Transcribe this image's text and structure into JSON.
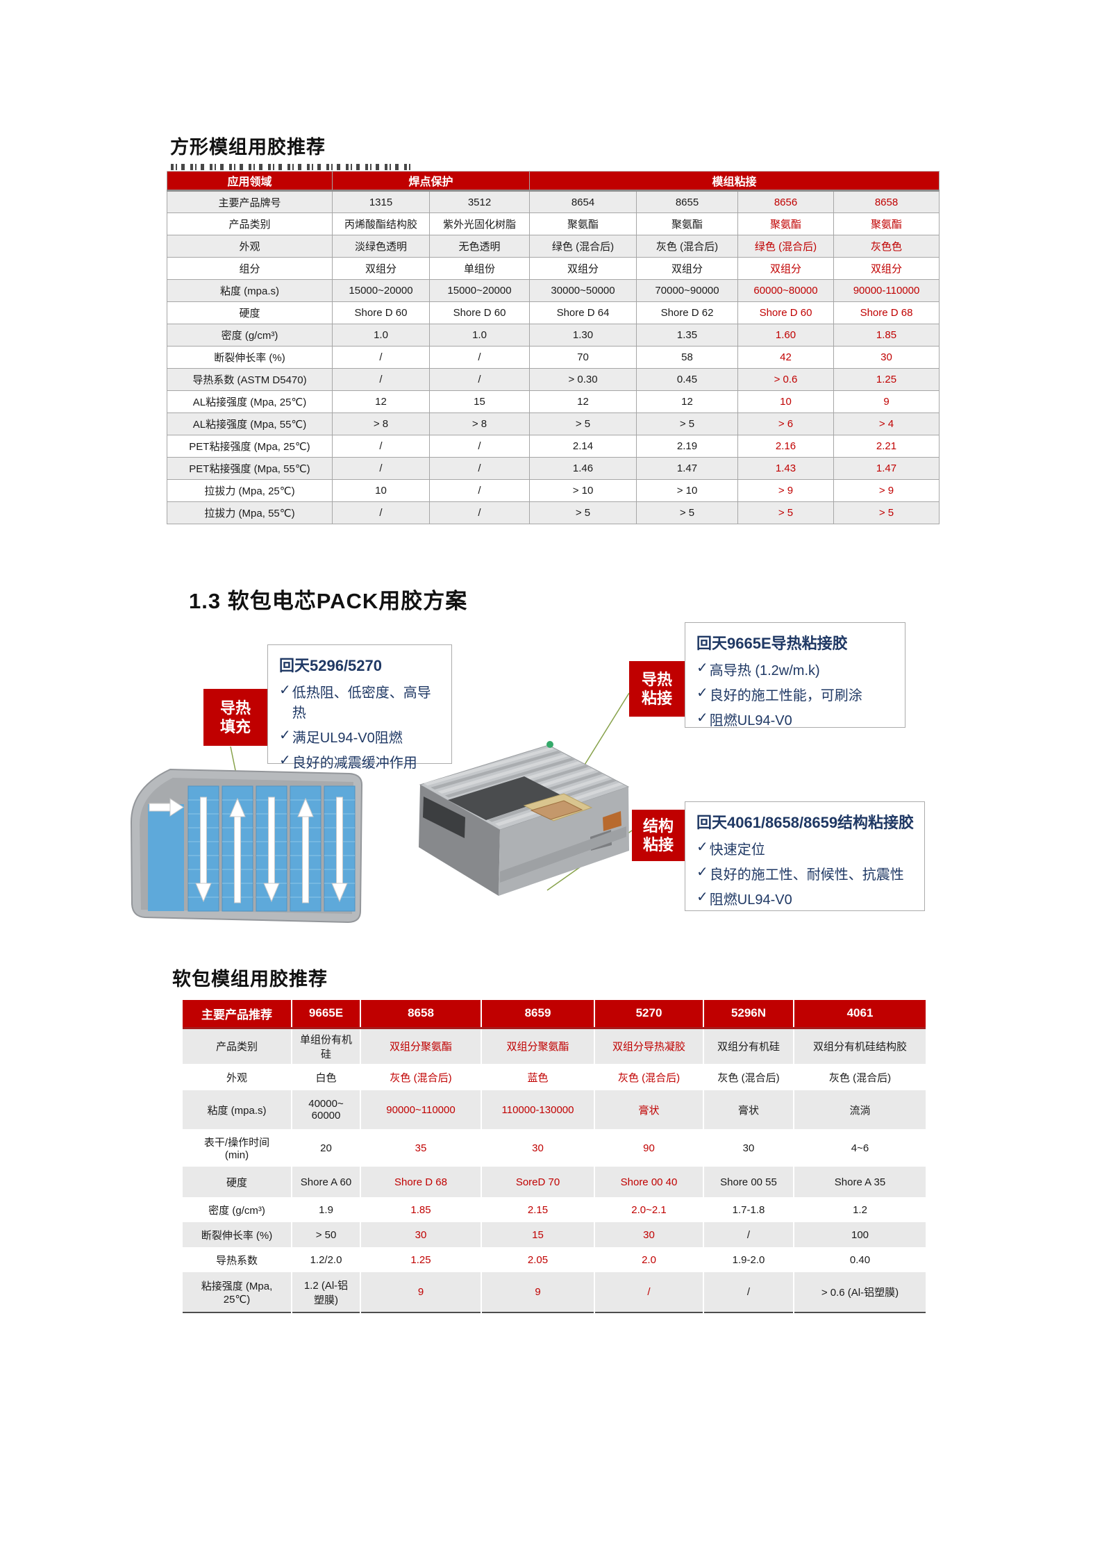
{
  "table1": {
    "title": "方形模组用胶推荐",
    "header_row": {
      "app_field": "应用领域",
      "weld_protection": "焊点保护",
      "module_bonding": "模组粘接"
    },
    "red_value_columns": [
      4,
      5
    ],
    "rows": [
      {
        "label": "主要产品牌号",
        "values": [
          "1315",
          "3512",
          "8654",
          "8655",
          "8656",
          "8658"
        ]
      },
      {
        "label": "产品类别",
        "values": [
          "丙烯酸酯结构胶",
          "紫外光固化树脂",
          "聚氨酯",
          "聚氨酯",
          "聚氨酯",
          "聚氨酯"
        ]
      },
      {
        "label": "外观",
        "values": [
          "淡绿色透明",
          "无色透明",
          "绿色 (混合后)",
          "灰色 (混合后)",
          "绿色 (混合后)",
          "灰色色"
        ]
      },
      {
        "label": "组分",
        "values": [
          "双组分",
          "单组份",
          "双组分",
          "双组分",
          "双组分",
          "双组分"
        ]
      },
      {
        "label": "粘度 (mpa.s)",
        "values": [
          "15000~20000",
          "15000~20000",
          "30000~50000",
          "70000~90000",
          "60000~80000",
          "90000-110000"
        ]
      },
      {
        "label": "硬度",
        "values": [
          "Shore D 60",
          "Shore D 60",
          "Shore D 64",
          "Shore D 62",
          "Shore D 60",
          "Shore D 68"
        ]
      },
      {
        "label": "密度 (g/cm³)",
        "values": [
          "1.0",
          "1.0",
          "1.30",
          "1.35",
          "1.60",
          "1.85"
        ]
      },
      {
        "label": "断裂伸长率 (%)",
        "values": [
          "/",
          "/",
          "70",
          "58",
          "42",
          "30"
        ]
      },
      {
        "label": "导热系数 (ASTM D5470)",
        "values": [
          "/",
          "/",
          "> 0.30",
          "0.45",
          "> 0.6",
          "1.25"
        ]
      },
      {
        "label": "AL粘接强度 (Mpa, 25℃)",
        "values": [
          "12",
          "15",
          "12",
          "12",
          "10",
          "9"
        ]
      },
      {
        "label": "AL粘接强度 (Mpa, 55℃)",
        "values": [
          "> 8",
          "> 8",
          "> 5",
          "> 5",
          "> 6",
          "> 4"
        ]
      },
      {
        "label": "PET粘接强度 (Mpa, 25℃)",
        "values": [
          "/",
          "/",
          "2.14",
          "2.19",
          "2.16",
          "2.21"
        ]
      },
      {
        "label": "PET粘接强度 (Mpa, 55℃)",
        "values": [
          "/",
          "/",
          "1.46",
          "1.47",
          "1.43",
          "1.47"
        ]
      },
      {
        "label": "拉拔力 (Mpa, 25℃)",
        "values": [
          "10",
          "/",
          "> 10",
          "> 10",
          "> 9",
          "> 9"
        ]
      },
      {
        "label": "拉拔力 (Mpa, 55℃)",
        "values": [
          "/",
          "/",
          "> 5",
          "> 5",
          "> 5",
          "> 5"
        ]
      }
    ]
  },
  "section": {
    "heading": "1.3 软包电芯PACK用胶方案"
  },
  "diagram": {
    "check_glyph": "✓",
    "tags": [
      {
        "label": "导热\n填充"
      },
      {
        "label": "导热\n粘接"
      },
      {
        "label": "结构\n粘接"
      }
    ],
    "callouts": [
      {
        "title": "回天5296/5270",
        "items": [
          "低热阻、低密度、高导热",
          "满足UL94-V0阻燃",
          "良好的减震缓冲作用"
        ]
      },
      {
        "title": "回天9665E导热粘接胶",
        "items": [
          "高导热 (1.2w/m.k)",
          "良好的施工性能，可刷涂",
          "阻燃UL94-V0"
        ]
      },
      {
        "title": "回天4061/8658/8659结构粘接胶",
        "items": [
          "快速定位",
          "良好的施工性、耐候性、抗震性",
          "阻燃UL94-V0"
        ]
      }
    ]
  },
  "table2": {
    "title": "软包模组用胶推荐",
    "header": [
      "主要产品推荐",
      "9665E",
      "8658",
      "8659",
      "5270",
      "5296N",
      "4061"
    ],
    "red_value_columns": [
      1,
      2,
      3
    ],
    "rows": [
      {
        "label": "产品类别",
        "values": [
          "单组份有机\n硅",
          "双组分聚氨酯",
          "双组分聚氨酯",
          "双组分导热凝胶",
          "双组分有机硅",
          "双组分有机硅结构胶"
        ]
      },
      {
        "label": "外观",
        "values": [
          "白色",
          "灰色 (混合后)",
          "蓝色",
          "灰色 (混合后)",
          "灰色 (混合后)",
          "灰色 (混合后)"
        ]
      },
      {
        "label": "粘度 (mpa.s)",
        "values": [
          "40000~\n60000",
          "90000~110000",
          "110000-130000",
          "膏状",
          "膏状",
          "流淌"
        ]
      },
      {
        "label": "表干/操作时间\n(min)",
        "values": [
          "20",
          "35",
          "30",
          "90",
          "30",
          "4~6"
        ]
      },
      {
        "label": "硬度",
        "values": [
          "Shore A 60",
          "Shore D 68",
          "SoreD 70",
          "Shore 00 40",
          "Shore 00 55",
          "Shore A 35"
        ]
      },
      {
        "label": "密度 (g/cm³)",
        "values": [
          "1.9",
          "1.85",
          "2.15",
          "2.0~2.1",
          "1.7-1.8",
          "1.2"
        ]
      },
      {
        "label": "断裂伸长率 (%)",
        "values": [
          "> 50",
          "30",
          "15",
          "30",
          "/",
          "100"
        ]
      },
      {
        "label": "导热系数",
        "values": [
          "1.2/2.0",
          "1.25",
          "2.05",
          "2.0",
          "1.9-2.0",
          "0.40"
        ]
      },
      {
        "label": "粘接强度 (Mpa,\n25℃)",
        "values": [
          "1.2 (Al-铝\n塑膜)",
          "9",
          "9",
          "/",
          "/",
          "> 0.6 (Al-铝塑膜)"
        ]
      }
    ]
  },
  "colors": {
    "accent_red": "#C00000",
    "callout_text_blue": "#1F3864",
    "connector_green": "#87A24B",
    "cell_blue": "#5EA9DA"
  }
}
